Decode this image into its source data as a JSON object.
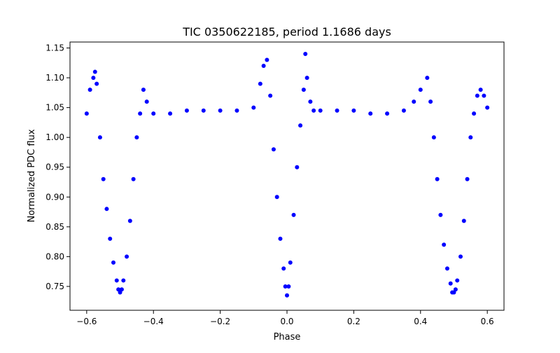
{
  "chart_data": {
    "type": "scatter",
    "title": "TIC 0350622185, period 1.1686 days",
    "xlabel": "Phase",
    "ylabel": "Normalized PDC flux",
    "xlim": [
      -0.65,
      0.65
    ],
    "ylim": [
      0.71,
      1.16
    ],
    "xticks": [
      -0.6,
      -0.4,
      -0.2,
      0.0,
      0.2,
      0.4,
      0.6
    ],
    "xtick_labels": [
      "−0.6",
      "−0.4",
      "−0.2",
      "0.0",
      "0.2",
      "0.4",
      "0.6"
    ],
    "yticks": [
      0.75,
      0.8,
      0.85,
      0.9,
      0.95,
      1.0,
      1.05,
      1.1,
      1.15
    ],
    "ytick_labels": [
      "0.75",
      "0.80",
      "0.85",
      "0.90",
      "0.95",
      "1.00",
      "1.05",
      "1.10",
      "1.15"
    ],
    "grid": false,
    "legend": "none",
    "point_color": "#0000ff",
    "series": [
      {
        "x": [
          -0.6,
          -0.59,
          -0.58,
          -0.575,
          -0.57,
          -0.56,
          -0.55,
          -0.54,
          -0.53,
          -0.52,
          -0.51,
          -0.505,
          -0.5,
          -0.495,
          -0.49,
          -0.48,
          -0.47,
          -0.46,
          -0.45,
          -0.44,
          -0.43,
          -0.42,
          -0.4,
          -0.35,
          -0.3,
          -0.25,
          -0.2,
          -0.15,
          -0.1,
          -0.08,
          -0.07,
          -0.06,
          -0.05,
          -0.04,
          -0.03,
          -0.02,
          -0.01,
          -0.005,
          0.0,
          0.005,
          0.01,
          0.02,
          0.03,
          0.04,
          0.05,
          0.055,
          0.06,
          0.07,
          0.08,
          0.1,
          0.15,
          0.2,
          0.25,
          0.3,
          0.35,
          0.38,
          0.4,
          0.42,
          0.43,
          0.44,
          0.45,
          0.46,
          0.47,
          0.48,
          0.49,
          0.495,
          0.5,
          0.505,
          0.51,
          0.52,
          0.53,
          0.54,
          0.55,
          0.56,
          0.57,
          0.58,
          0.59,
          0.6
        ],
        "y": [
          1.04,
          1.08,
          1.1,
          1.11,
          1.09,
          1.0,
          0.93,
          0.88,
          0.83,
          0.79,
          0.76,
          0.745,
          0.74,
          0.745,
          0.76,
          0.8,
          0.86,
          0.93,
          1.0,
          1.04,
          1.08,
          1.06,
          1.04,
          1.04,
          1.045,
          1.045,
          1.045,
          1.045,
          1.05,
          1.09,
          1.12,
          1.13,
          1.07,
          0.98,
          0.9,
          0.83,
          0.78,
          0.75,
          0.735,
          0.75,
          0.79,
          0.87,
          0.95,
          1.02,
          1.08,
          1.14,
          1.1,
          1.06,
          1.045,
          1.045,
          1.045,
          1.045,
          1.04,
          1.04,
          1.045,
          1.06,
          1.08,
          1.1,
          1.06,
          1.0,
          0.93,
          0.87,
          0.82,
          0.78,
          0.755,
          0.74,
          0.74,
          0.745,
          0.76,
          0.8,
          0.86,
          0.93,
          1.0,
          1.04,
          1.07,
          1.08,
          1.07,
          1.05
        ]
      }
    ]
  }
}
